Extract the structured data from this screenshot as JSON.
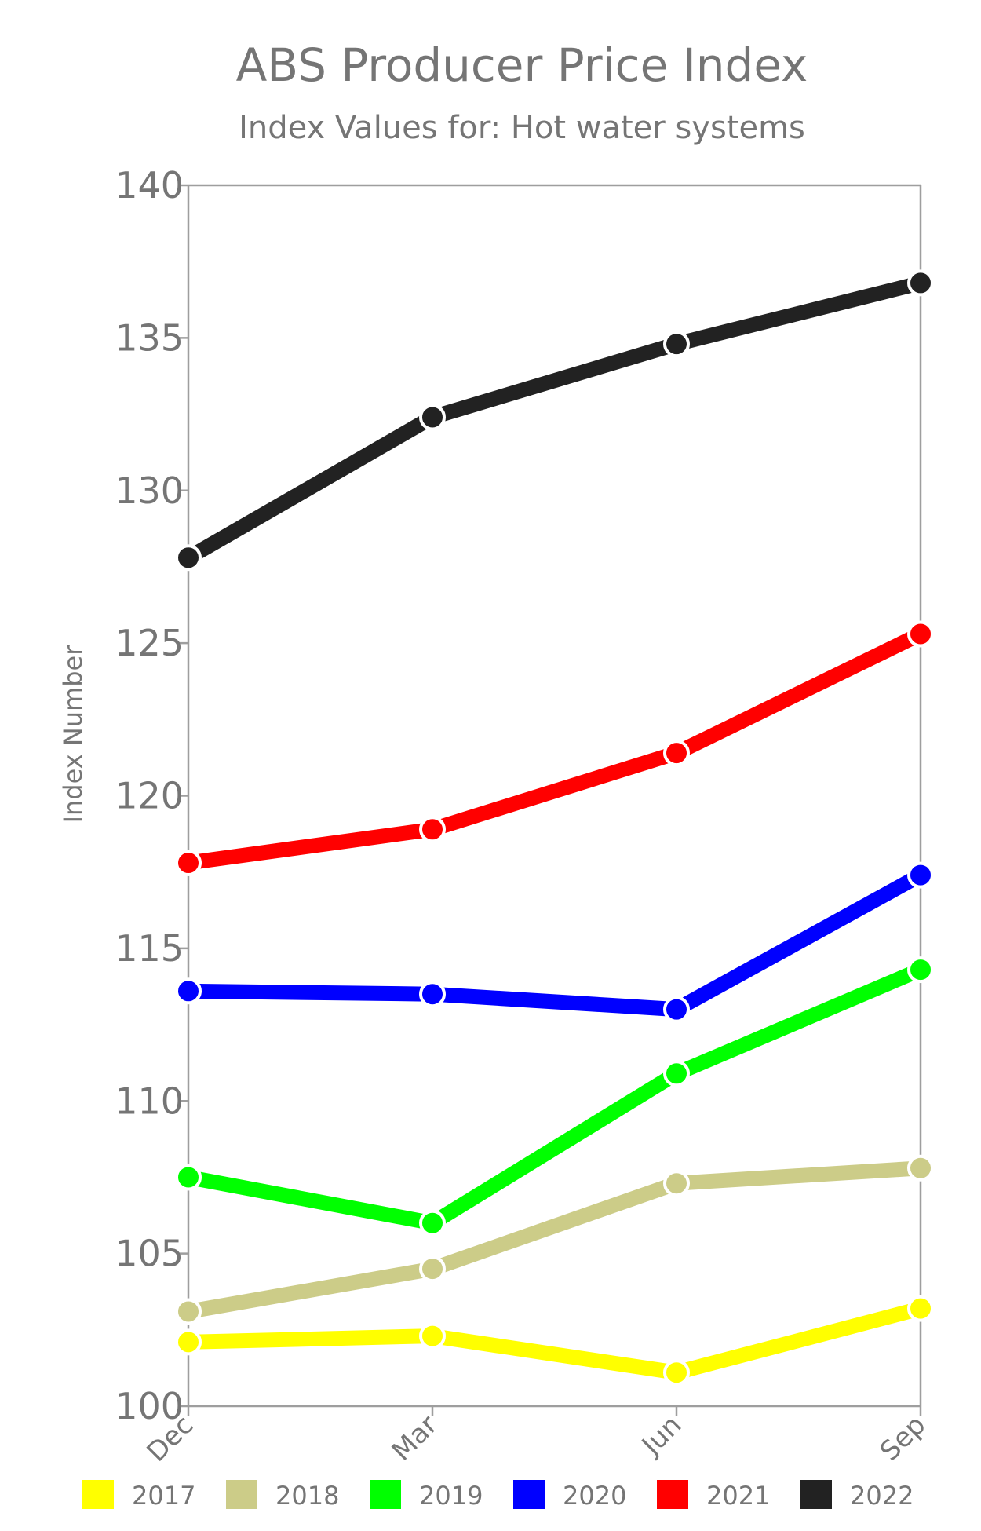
{
  "chart_data": {
    "type": "line",
    "title": "ABS Producer Price Index",
    "subtitle": "Index Values for: Hot water systems",
    "ylabel": "Index Number",
    "xlabel": "",
    "categories": [
      "Dec",
      "Mar",
      "Jun",
      "Sep"
    ],
    "ylim": [
      100,
      140
    ],
    "yticks": [
      100,
      105,
      110,
      115,
      120,
      125,
      130,
      135,
      140
    ],
    "legend_position": "bottom",
    "grid": false,
    "series": [
      {
        "name": "2017",
        "color": "#ffff00",
        "values": [
          102.1,
          102.3,
          101.1,
          103.2
        ]
      },
      {
        "name": "2018",
        "color": "#cccc88",
        "values": [
          103.1,
          104.5,
          107.3,
          107.8
        ]
      },
      {
        "name": "2019",
        "color": "#00ff00",
        "values": [
          107.5,
          106.0,
          110.9,
          114.3
        ]
      },
      {
        "name": "2020",
        "color": "#0000ff",
        "values": [
          113.6,
          113.5,
          113.0,
          117.4
        ]
      },
      {
        "name": "2021",
        "color": "#ff0000",
        "values": [
          117.8,
          118.9,
          121.4,
          125.3
        ]
      },
      {
        "name": "2022",
        "color": "#222222",
        "values": [
          127.8,
          132.4,
          134.8,
          136.8
        ]
      }
    ]
  }
}
